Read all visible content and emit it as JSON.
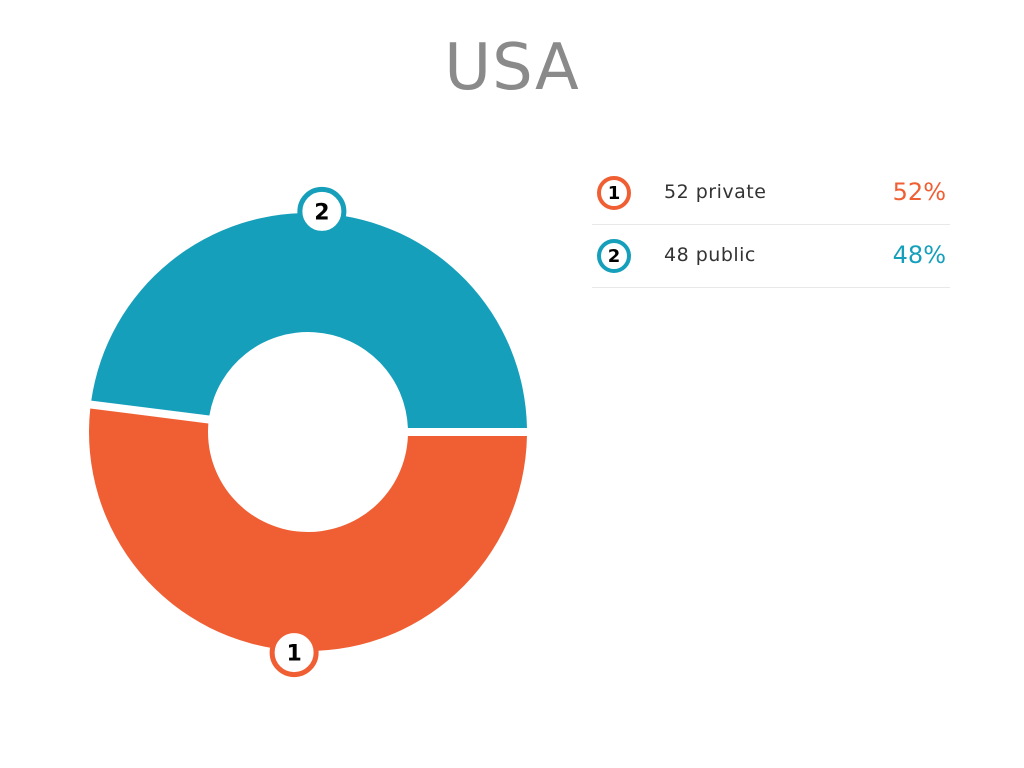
{
  "chart_data": {
    "type": "pie",
    "title": "USA",
    "slices": [
      {
        "index": "1",
        "label": "52 private",
        "value": 52,
        "percent": "52%",
        "color": "#f05f33"
      },
      {
        "index": "2",
        "label": "48 public",
        "value": 48,
        "percent": "48%",
        "color": "#159fba"
      }
    ],
    "legend_position": "right"
  }
}
